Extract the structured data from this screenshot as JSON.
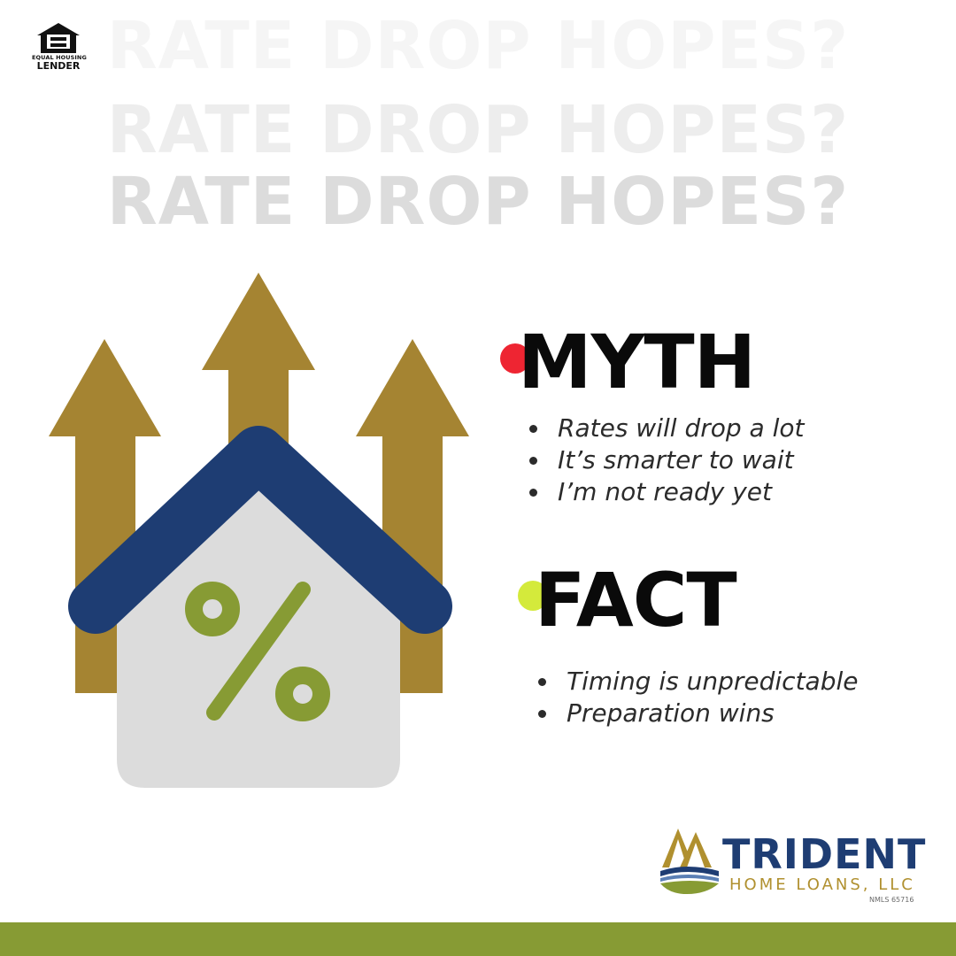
{
  "badge": {
    "line1": "EQUAL HOUSING",
    "line2": "LENDER",
    "icon": "equal-housing-icon"
  },
  "headline": {
    "repeated_text": "RATE DROP HOPES?"
  },
  "myth": {
    "title": "MYTH",
    "bullet_color": "#ee2532",
    "items": [
      "Rates will drop a lot",
      "It’s smarter to wait",
      "I’m not ready yet"
    ]
  },
  "fact": {
    "title": "FACT",
    "bullet_color": "#d4ea3b",
    "items": [
      "Timing is unpredictable",
      "Preparation wins"
    ]
  },
  "illustration": {
    "icons": [
      "up-arrow-icon",
      "house-icon",
      "percent-icon"
    ]
  },
  "logo": {
    "brand": "TRIDENT",
    "subtitle": "HOME LOANS, LLC",
    "nmls": "NMLS 65716"
  },
  "colors": {
    "gold": "#a58432",
    "navy": "#1e3d73",
    "green": "#879b34",
    "house_gray": "#dcdcdc"
  }
}
